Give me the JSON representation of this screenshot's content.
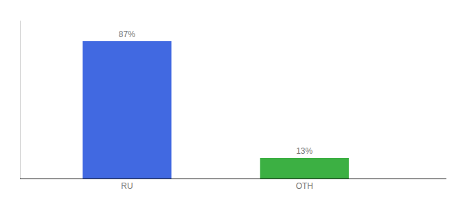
{
  "chart_data": {
    "type": "bar",
    "categories": [
      "RU",
      "OTH"
    ],
    "values": [
      87,
      13
    ],
    "value_labels": [
      "87%",
      "13%"
    ],
    "colors": [
      "#4169e1",
      "#3cb043"
    ],
    "ylim": [
      0,
      100
    ],
    "data_labels": true,
    "grid": false,
    "tick_labels": "x"
  }
}
